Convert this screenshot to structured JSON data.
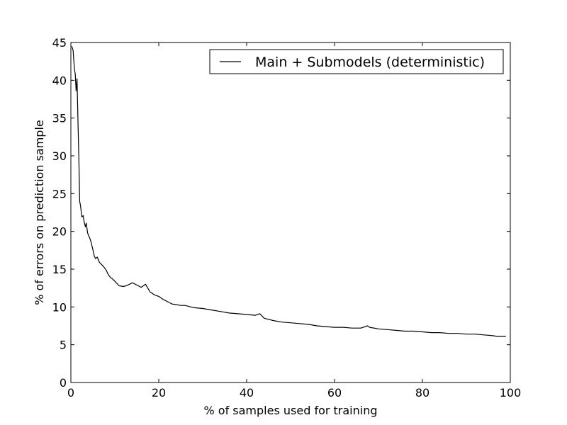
{
  "chart_data": {
    "type": "line",
    "title": "",
    "xlabel": "% of samples used for training",
    "ylabel": "% of errors on prediction sample",
    "xlim": [
      0,
      100
    ],
    "ylim": [
      0,
      45
    ],
    "x_ticks": [
      "0",
      "20",
      "40",
      "60",
      "80",
      "100"
    ],
    "y_ticks": [
      "0",
      "5",
      "10",
      "15",
      "20",
      "25",
      "30",
      "35",
      "40",
      "45"
    ],
    "grid": false,
    "legend_position": "upper right",
    "series": [
      {
        "name": "Main + Submodels (deterministic)",
        "color": "#000000",
        "x": [
          0.2,
          0.5,
          0.8,
          1.0,
          1.2,
          1.4,
          1.6,
          1.8,
          2.0,
          2.2,
          2.5,
          2.8,
          3.0,
          3.3,
          3.5,
          3.8,
          4.0,
          4.3,
          4.6,
          5.0,
          5.3,
          5.6,
          6.0,
          6.5,
          7.0,
          7.5,
          8.0,
          8.5,
          9.0,
          9.5,
          10,
          11,
          12,
          13,
          14,
          15,
          16,
          17,
          18,
          19,
          20,
          21,
          22,
          23,
          24,
          25,
          26,
          28,
          30,
          32,
          34,
          36,
          38,
          40,
          42,
          43,
          44,
          46,
          48,
          50,
          52,
          54,
          56,
          58,
          60,
          62,
          64,
          66,
          67.5,
          68,
          70,
          72,
          74,
          76,
          78,
          80,
          82,
          84,
          86,
          88,
          90,
          92,
          94,
          96,
          97,
          98,
          99
        ],
        "y": [
          44.5,
          44.0,
          41.5,
          40.8,
          38.6,
          40.2,
          35.0,
          30.0,
          24.0,
          23.4,
          21.9,
          22.1,
          21.3,
          20.6,
          21.1,
          19.8,
          19.5,
          19.1,
          18.6,
          17.6,
          16.8,
          16.4,
          16.6,
          15.9,
          15.6,
          15.3,
          14.9,
          14.3,
          13.9,
          13.7,
          13.4,
          12.8,
          12.7,
          12.9,
          13.2,
          12.9,
          12.6,
          13.0,
          12.0,
          11.6,
          11.4,
          11.0,
          10.7,
          10.4,
          10.3,
          10.2,
          10.2,
          9.9,
          9.8,
          9.6,
          9.4,
          9.2,
          9.1,
          9.0,
          8.9,
          9.1,
          8.5,
          8.2,
          8.0,
          7.9,
          7.8,
          7.7,
          7.5,
          7.4,
          7.3,
          7.3,
          7.2,
          7.2,
          7.5,
          7.3,
          7.1,
          7.0,
          6.9,
          6.8,
          6.8,
          6.7,
          6.6,
          6.6,
          6.5,
          6.5,
          6.4,
          6.4,
          6.3,
          6.2,
          6.1,
          6.1,
          6.1
        ]
      }
    ]
  }
}
